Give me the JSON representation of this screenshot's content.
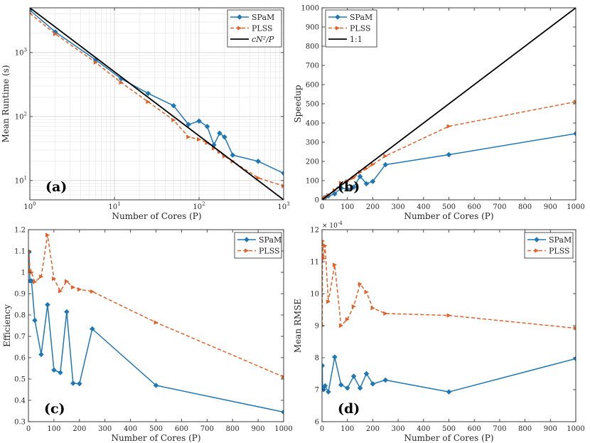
{
  "figure": {
    "series_colors": {
      "SPaM": "#1f77b4",
      "PLSS": "#e0622a",
      "ref": "#000000"
    }
  },
  "chart_data": [
    {
      "panel_label": "(a)",
      "type": "line",
      "xscale": "log",
      "yscale": "log",
      "xlabel": "Number of Cores (P)",
      "ylabel": "Mean Runtime (s)",
      "xlim": [
        1,
        1000
      ],
      "ylim": [
        5,
        5000
      ],
      "x_ticks": [
        1,
        10,
        100,
        1000
      ],
      "x_tick_labels": [
        "10",
        "10",
        "10",
        "10"
      ],
      "x_tick_exponents": [
        "0",
        "1",
        "2",
        "3"
      ],
      "y_ticks": [
        10,
        100,
        1000
      ],
      "y_tick_labels": [
        "10",
        "10",
        "10"
      ],
      "y_tick_exponents": [
        "1",
        "2",
        "3"
      ],
      "grid": true,
      "legend": "top-right",
      "series": [
        {
          "name": "SPaM",
          "style": "solid-diamond",
          "x": [
            1,
            2,
            6,
            12,
            25,
            50,
            75,
            100,
            125,
            150,
            175,
            200,
            250,
            500,
            1000
          ],
          "y": [
            4600,
            2100,
            770,
            390,
            230,
            148,
            75,
            85,
            70,
            36,
            55,
            48,
            25,
            20,
            13
          ]
        },
        {
          "name": "PLSS",
          "style": "dashed-triangle",
          "x": [
            1,
            2,
            6,
            12,
            25,
            50,
            75,
            100,
            125,
            150,
            175,
            200,
            250,
            500,
            1000
          ],
          "y": [
            4100,
            1950,
            700,
            340,
            170,
            88,
            48,
            44,
            39,
            32,
            28,
            24,
            20,
            11,
            8.2
          ]
        },
        {
          "name": "cN²/P",
          "style": "solid",
          "x": [
            1,
            1000
          ],
          "y": [
            5000,
            5
          ]
        }
      ]
    },
    {
      "panel_label": "(b)",
      "type": "line",
      "xscale": "linear",
      "yscale": "linear",
      "xlabel": "Number of Cores (P)",
      "ylabel": "Speedup",
      "xlim": [
        0,
        1000
      ],
      "ylim": [
        0,
        1000
      ],
      "x_ticks": [
        0,
        100,
        200,
        300,
        400,
        500,
        600,
        700,
        800,
        900,
        1000
      ],
      "y_ticks": [
        0,
        100,
        200,
        300,
        400,
        500,
        600,
        700,
        800,
        900,
        1000
      ],
      "grid": false,
      "legend": "top-left",
      "series": [
        {
          "name": "SPaM",
          "style": "solid-diamond",
          "x": [
            1,
            2,
            6,
            12,
            25,
            50,
            75,
            100,
            125,
            150,
            175,
            200,
            250,
            500,
            1000
          ],
          "y": [
            1,
            2,
            6,
            12,
            20,
            31,
            62,
            55,
            66,
            122,
            84,
            96,
            183,
            235,
            345
          ]
        },
        {
          "name": "PLSS",
          "style": "dashed-triangle",
          "x": [
            1,
            2,
            6,
            12,
            25,
            50,
            75,
            100,
            125,
            150,
            175,
            200,
            250,
            500,
            1000
          ],
          "y": [
            1,
            2,
            6,
            12,
            24,
            49,
            88,
            97,
            115,
            144,
            163,
            184,
            228,
            383,
            511
          ]
        },
        {
          "name": "1:1",
          "style": "solid",
          "x": [
            0,
            1000
          ],
          "y": [
            0,
            1000
          ]
        }
      ]
    },
    {
      "panel_label": "(c)",
      "type": "line",
      "xscale": "linear",
      "yscale": "linear",
      "xlabel": "Number of Cores (P)",
      "ylabel": "Efficiency",
      "xlim": [
        0,
        1000
      ],
      "ylim": [
        0.3,
        1.2
      ],
      "x_ticks": [
        0,
        100,
        200,
        300,
        400,
        500,
        600,
        700,
        800,
        900,
        1000
      ],
      "y_ticks": [
        0.3,
        0.4,
        0.5,
        0.6,
        0.7,
        0.8,
        0.9,
        1,
        1.1,
        1.2
      ],
      "y_tick_labels": [
        "0.3",
        "0.4",
        "0.5",
        "0.6",
        "0.7",
        "0.8",
        "0.9",
        "1",
        "1.1",
        "1.2"
      ],
      "grid": false,
      "legend": "top-right",
      "series": [
        {
          "name": "SPaM",
          "style": "solid-diamond",
          "x": [
            2,
            6,
            12,
            25,
            50,
            75,
            100,
            125,
            150,
            175,
            200,
            250,
            500,
            1000
          ],
          "y": [
            1.095,
            0.96,
            0.96,
            0.775,
            0.615,
            0.848,
            0.542,
            0.53,
            0.815,
            0.48,
            0.478,
            0.735,
            0.47,
            0.345
          ]
        },
        {
          "name": "PLSS",
          "style": "dashed-triangle",
          "x": [
            2,
            6,
            12,
            25,
            50,
            75,
            100,
            125,
            150,
            175,
            200,
            250,
            500,
            1000
          ],
          "y": [
            1.1,
            1.01,
            1.0,
            0.955,
            0.98,
            1.175,
            0.97,
            0.912,
            0.958,
            0.93,
            0.92,
            0.91,
            0.765,
            0.51
          ]
        }
      ]
    },
    {
      "panel_label": "(d)",
      "type": "line",
      "xscale": "linear",
      "yscale": "linear",
      "xlabel": "Number of Cores (P)",
      "ylabel": "Mean RMSE",
      "y_multiplier_base": "× 10",
      "y_multiplier_exp": "-4",
      "xlim": [
        0,
        1000
      ],
      "ylim": [
        6,
        12
      ],
      "x_ticks": [
        0,
        100,
        200,
        300,
        400,
        500,
        600,
        700,
        800,
        900,
        1000
      ],
      "y_ticks": [
        6,
        7,
        8,
        9,
        10,
        11,
        12
      ],
      "grid": false,
      "legend": "top-right",
      "series": [
        {
          "name": "SPaM",
          "style": "solid-diamond",
          "x": [
            1,
            2,
            6,
            12,
            25,
            50,
            75,
            100,
            125,
            150,
            175,
            200,
            250,
            500,
            1000
          ],
          "y": [
            7.75,
            7.05,
            7.0,
            7.12,
            6.93,
            8.02,
            7.15,
            7.05,
            7.42,
            7.05,
            7.5,
            7.18,
            7.3,
            6.93,
            7.97
          ]
        },
        {
          "name": "PLSS",
          "style": "dashed-triangle",
          "x": [
            1,
            2,
            6,
            12,
            25,
            50,
            75,
            100,
            125,
            150,
            175,
            200,
            250,
            500,
            1000
          ],
          "y": [
            9.0,
            11.65,
            11.1,
            11.5,
            9.75,
            10.9,
            9.0,
            9.2,
            9.6,
            10.3,
            10.05,
            9.55,
            9.38,
            9.32,
            8.92
          ]
        }
      ]
    }
  ]
}
